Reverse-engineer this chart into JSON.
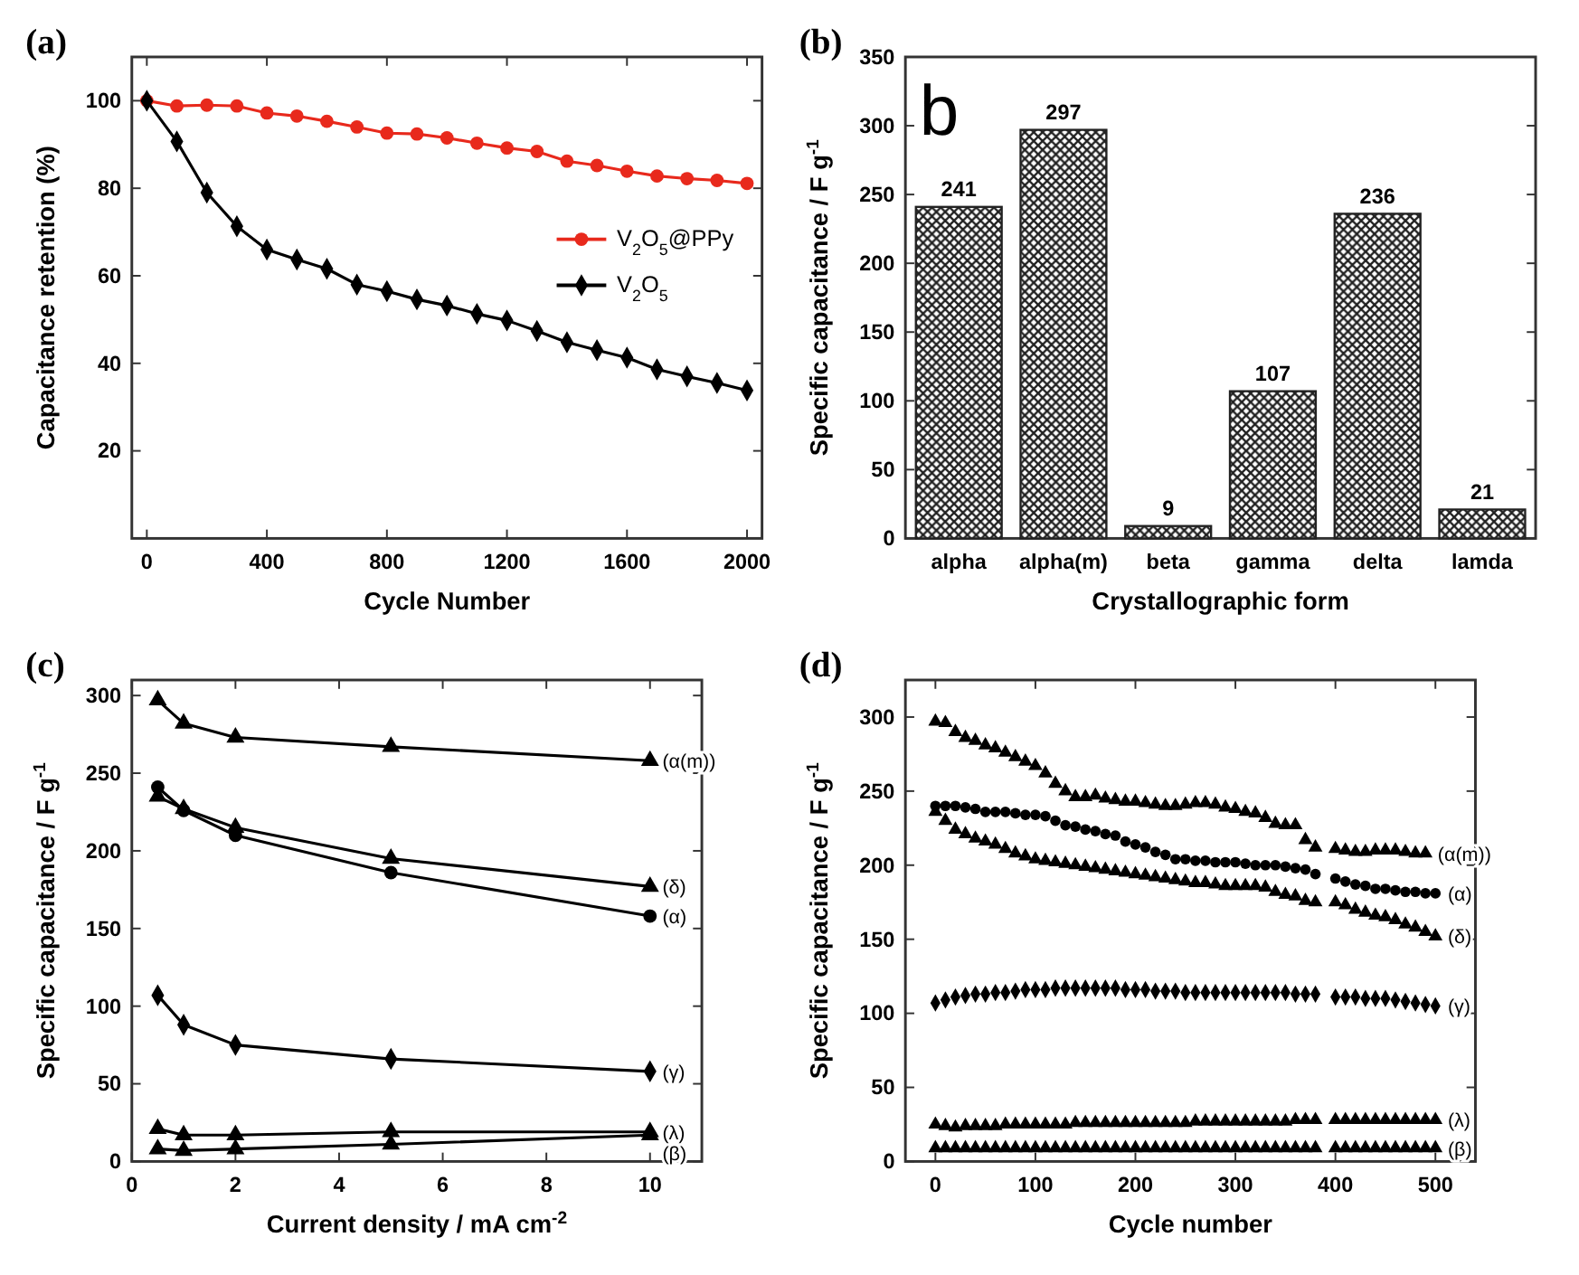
{
  "chart_data": [
    {
      "type": "line",
      "title": "(a)",
      "xlabel": "Cycle Number",
      "ylabel": "Capacitance retention (%)",
      "x": [
        0,
        100,
        200,
        300,
        400,
        500,
        600,
        700,
        800,
        900,
        1000,
        1100,
        1200,
        1300,
        1400,
        1500,
        1600,
        1700,
        1800,
        1900,
        2000
      ],
      "xlim": [
        -50,
        2050
      ],
      "ylim": [
        0,
        110
      ],
      "xticks": [
        0,
        400,
        800,
        1200,
        1600,
        2000
      ],
      "yticks": [
        20,
        40,
        60,
        80,
        100
      ],
      "legend": "right",
      "line_style": "solid",
      "series": [
        {
          "name": "V$_{2}$O$_{5}$@PPy",
          "color": "#e8291c",
          "marker": "circle",
          "values": [
            100,
            98.8,
            99,
            98.8,
            97.2,
            96.5,
            95.3,
            94,
            92.6,
            92.4,
            91.5,
            90.3,
            89.2,
            88.4,
            86.2,
            85.2,
            83.9,
            82.8,
            82.2,
            81.8,
            81.1
          ]
        },
        {
          "name": "V$_{2}$O$_{5}$",
          "color": "#000000",
          "marker": "diamond",
          "values": [
            100,
            90.7,
            79,
            71.3,
            66,
            63.7,
            61.6,
            58,
            56.5,
            54.6,
            53.2,
            51.3,
            49.8,
            47.4,
            44.8,
            43,
            41.3,
            38.6,
            37,
            35.5,
            33.8
          ]
        }
      ]
    },
    {
      "type": "bar",
      "title": "(b)",
      "xlabel": "Crystallographic form",
      "ylabel": "Specific capacitance / F g$^{-1}$",
      "categories": [
        "alpha",
        "alpha(m)",
        "beta",
        "gamma",
        "delta",
        "lamda"
      ],
      "values": [
        241,
        297,
        9,
        107,
        236,
        21
      ],
      "color": "#222222",
      "ylim": [
        0,
        350
      ],
      "yticks": [
        0,
        50,
        100,
        150,
        200,
        250,
        300,
        350
      ],
      "data_labels": true,
      "annotations": [
        "b"
      ]
    },
    {
      "type": "line",
      "title": "(c)",
      "xlabel": "Current density / mA cm$^{-2}$",
      "ylabel": "Specific capacitance / F g$^{-1}$",
      "x": [
        0.5,
        1,
        2,
        5,
        10
      ],
      "xlim": [
        0,
        11
      ],
      "ylim": [
        0,
        310
      ],
      "xticks": [
        0,
        2,
        4,
        6,
        8,
        10
      ],
      "yticks": [
        0,
        50,
        100,
        150,
        200,
        250,
        300
      ],
      "legend": false,
      "line_style": "solid",
      "series": [
        {
          "name": "(α(m))",
          "color": "#000000",
          "marker": "triangle",
          "values": [
            297,
            282,
            273,
            267,
            258
          ]
        },
        {
          "name": "(δ)",
          "color": "#000000",
          "marker": "triangle",
          "values": [
            235,
            227,
            215,
            195,
            177
          ]
        },
        {
          "name": "(α)",
          "color": "#000000",
          "marker": "circle",
          "values": [
            241,
            226,
            210,
            186,
            158
          ]
        },
        {
          "name": "(γ)",
          "color": "#000000",
          "marker": "diamond",
          "values": [
            107,
            88,
            75,
            66,
            58
          ]
        },
        {
          "name": "(λ)",
          "color": "#000000",
          "marker": "triangle",
          "values": [
            21,
            17,
            17,
            19,
            19
          ]
        },
        {
          "name": "(β)",
          "color": "#000000",
          "marker": "triangle",
          "values": [
            8,
            7,
            8,
            11,
            17
          ]
        }
      ]
    },
    {
      "type": "scatter",
      "title": "(d)",
      "xlabel": "Cycle number",
      "ylabel": "Specific capacitance / F g$^{-1}$",
      "x": [
        0,
        10,
        20,
        30,
        40,
        50,
        60,
        70,
        80,
        90,
        100,
        110,
        120,
        130,
        140,
        150,
        160,
        170,
        180,
        190,
        200,
        210,
        220,
        230,
        240,
        250,
        260,
        270,
        280,
        290,
        300,
        310,
        320,
        330,
        340,
        350,
        360,
        370,
        380,
        400,
        410,
        420,
        430,
        440,
        450,
        460,
        470,
        480,
        490,
        500
      ],
      "xlim": [
        -30,
        540
      ],
      "ylim": [
        0,
        325
      ],
      "xticks": [
        0,
        100,
        200,
        300,
        400,
        500
      ],
      "yticks": [
        0,
        50,
        100,
        150,
        200,
        250,
        300
      ],
      "legend": false,
      "series": [
        {
          "name": "(α(m))",
          "color": "#000000",
          "marker": "triangle",
          "values": [
            297,
            296,
            290,
            286,
            284,
            281,
            279,
            276,
            273,
            270,
            267,
            262,
            255,
            250,
            246,
            246,
            247,
            245,
            244,
            243,
            243,
            242,
            241,
            240,
            240,
            241,
            242,
            242,
            241,
            239,
            238,
            236,
            235,
            232,
            228,
            227,
            227,
            217,
            212,
            211,
            210,
            209,
            209,
            210,
            210,
            210,
            209,
            208,
            208,
            null
          ]
        },
        {
          "name": "(α)",
          "color": "#000000",
          "marker": "circle",
          "values": [
            240,
            240,
            240,
            239,
            238,
            236,
            236,
            236,
            235,
            234,
            234,
            233,
            230,
            227,
            226,
            224,
            223,
            221,
            220,
            216,
            214,
            212,
            209,
            207,
            204,
            204,
            203,
            203,
            202,
            202,
            202,
            201,
            200,
            200,
            200,
            199,
            198,
            197,
            194,
            191,
            189,
            187,
            186,
            184,
            184,
            183,
            182,
            182,
            181,
            181
          ]
        },
        {
          "name": "(δ)",
          "color": "#000000",
          "marker": "triangle",
          "values": [
            236,
            230,
            224,
            221,
            218,
            216,
            214,
            211,
            208,
            206,
            204,
            203,
            202,
            201,
            200,
            199,
            198,
            197,
            196,
            195,
            194,
            193,
            192,
            191,
            190,
            189,
            188,
            188,
            187,
            186,
            186,
            186,
            186,
            185,
            182,
            180,
            179,
            176,
            175,
            175,
            173,
            170,
            168,
            166,
            165,
            163,
            160,
            158,
            155,
            152
          ]
        },
        {
          "name": "(γ)",
          "color": "#000000",
          "marker": "diamond",
          "values": [
            107,
            109,
            111,
            112,
            113,
            113,
            114,
            114,
            115,
            116,
            116,
            116,
            117,
            117,
            117,
            117,
            117,
            117,
            117,
            116,
            116,
            116,
            115,
            115,
            115,
            114,
            114,
            114,
            114,
            114,
            114,
            114,
            114,
            114,
            114,
            114,
            113,
            113,
            113,
            111,
            111,
            111,
            110,
            110,
            110,
            109,
            108,
            107,
            106,
            105
          ]
        },
        {
          "name": "(λ)",
          "color": "#000000",
          "marker": "triangle",
          "values": [
            25,
            24,
            23,
            24,
            24,
            24,
            24,
            25,
            25,
            25,
            25,
            25,
            25,
            25,
            26,
            26,
            26,
            26,
            26,
            26,
            26,
            26,
            26,
            26,
            26,
            26,
            27,
            27,
            27,
            27,
            27,
            27,
            27,
            27,
            27,
            27,
            28,
            28,
            28,
            28,
            28,
            28,
            28,
            28,
            28,
            28,
            28,
            28,
            28,
            28
          ]
        },
        {
          "name": "(β)",
          "color": "#000000",
          "marker": "triangle",
          "values": [
            9,
            9,
            9,
            9,
            9,
            9,
            9,
            9,
            9,
            9,
            9,
            9,
            9,
            9,
            9,
            9,
            9,
            9,
            9,
            9,
            9,
            9,
            9,
            9,
            9,
            9,
            9,
            9,
            9,
            9,
            9,
            9,
            9,
            9,
            9,
            9,
            9,
            9,
            9,
            9,
            9,
            9,
            9,
            9,
            9,
            9,
            9,
            9,
            9,
            9
          ]
        }
      ]
    }
  ]
}
